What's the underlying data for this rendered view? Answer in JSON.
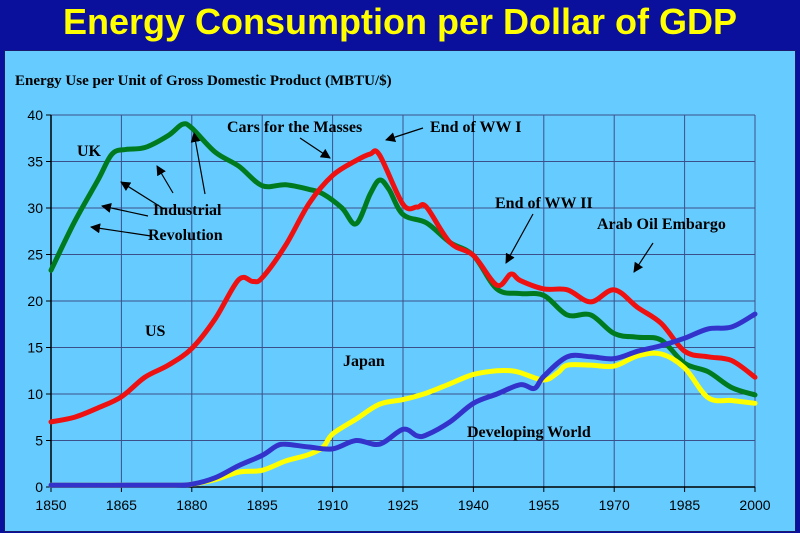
{
  "title": "Energy Consumption per Dollar of GDP",
  "chart_data": {
    "type": "line",
    "ylabel": "Energy Use per Unit of Gross Domestic Product (MBTU/$)",
    "xlim": [
      1850,
      2000
    ],
    "ylim": [
      0,
      40
    ],
    "x_ticks": [
      1850,
      1865,
      1880,
      1895,
      1910,
      1925,
      1940,
      1955,
      1970,
      1985,
      2000
    ],
    "y_ticks": [
      0,
      5,
      10,
      15,
      20,
      25,
      30,
      35,
      40
    ],
    "grid": true,
    "series": [
      {
        "name": "UK",
        "color": "#007a1e",
        "x": [
          1850,
          1855,
          1860,
          1863,
          1866,
          1870,
          1875,
          1878,
          1880,
          1885,
          1890,
          1895,
          1900,
          1905,
          1908,
          1912,
          1915,
          1918,
          1920,
          1922,
          1925,
          1930,
          1935,
          1940,
          1945,
          1950,
          1955,
          1960,
          1965,
          1970,
          1975,
          1980,
          1985,
          1990,
          1995,
          2000
        ],
        "y": [
          23.3,
          28.5,
          33,
          35.8,
          36.3,
          36.5,
          37.8,
          39,
          38.6,
          36,
          34.5,
          32.4,
          32.5,
          32,
          31.5,
          30,
          28.3,
          31.5,
          33,
          32,
          29.3,
          28.4,
          26.3,
          24.9,
          21.3,
          20.8,
          20.6,
          18.5,
          18.5,
          16.5,
          16.1,
          15.8,
          13.3,
          12.4,
          10.7,
          9.9
        ]
      },
      {
        "name": "US",
        "color": "#ee1111",
        "x": [
          1850,
          1855,
          1860,
          1865,
          1870,
          1875,
          1880,
          1885,
          1890,
          1893,
          1895,
          1900,
          1905,
          1910,
          1915,
          1918,
          1920,
          1925,
          1928,
          1930,
          1935,
          1940,
          1945,
          1948,
          1950,
          1955,
          1960,
          1965,
          1970,
          1975,
          1980,
          1985,
          1990,
          1995,
          2000
        ],
        "y": [
          7,
          7.5,
          8.5,
          9.7,
          11.8,
          13.1,
          14.9,
          18.1,
          22.3,
          22.1,
          22.5,
          26,
          30.5,
          33.5,
          35.1,
          35.8,
          35.7,
          30.4,
          30.1,
          30.1,
          26.3,
          24.9,
          21.7,
          22.9,
          22.2,
          21.3,
          21.2,
          19.9,
          21.2,
          19.3,
          17.6,
          14.6,
          14,
          13.6,
          11.8
        ]
      },
      {
        "name": "Japan",
        "color": "#ffff00",
        "x": [
          1850,
          1875,
          1880,
          1885,
          1890,
          1895,
          1900,
          1905,
          1908,
          1910,
          1915,
          1920,
          1925,
          1930,
          1935,
          1940,
          1945,
          1948,
          1950,
          1955,
          1958,
          1960,
          1965,
          1970,
          1975,
          1980,
          1985,
          1990,
          1995,
          2000
        ],
        "y": [
          0.2,
          0.2,
          0.3,
          0.8,
          1.6,
          1.8,
          2.8,
          3.5,
          4.3,
          5.7,
          7.3,
          8.9,
          9.4,
          10.1,
          11.1,
          12.1,
          12.5,
          12.5,
          12.3,
          11.5,
          12.3,
          13.1,
          13.1,
          13,
          14.1,
          14.3,
          12.8,
          9.6,
          9.3,
          9
        ]
      },
      {
        "name": "Developing World",
        "color": "#3333cc",
        "x": [
          1850,
          1875,
          1880,
          1885,
          1890,
          1895,
          1898,
          1900,
          1905,
          1910,
          1915,
          1920,
          1925,
          1928,
          1930,
          1935,
          1940,
          1945,
          1950,
          1953,
          1955,
          1960,
          1965,
          1970,
          1975,
          1980,
          1985,
          1990,
          1995,
          2000
        ],
        "y": [
          0.2,
          0.2,
          0.3,
          1,
          2.3,
          3.4,
          4.4,
          4.6,
          4.3,
          4.1,
          5,
          4.6,
          6.2,
          5.5,
          5.6,
          7,
          9,
          10,
          11,
          10.6,
          11.9,
          14,
          14,
          13.8,
          14.6,
          15.2,
          16,
          17,
          17.2,
          18.6
        ]
      }
    ]
  },
  "annotations": {
    "uk": "UK",
    "us": "US",
    "japan": "Japan",
    "developing": "Developing World",
    "industrial_1": "Industrial",
    "industrial_2": "Revolution",
    "cars": "Cars for the Masses",
    "ww1": "End of WW I",
    "ww2": "End of WW II",
    "oil": "Arab Oil Embargo"
  }
}
